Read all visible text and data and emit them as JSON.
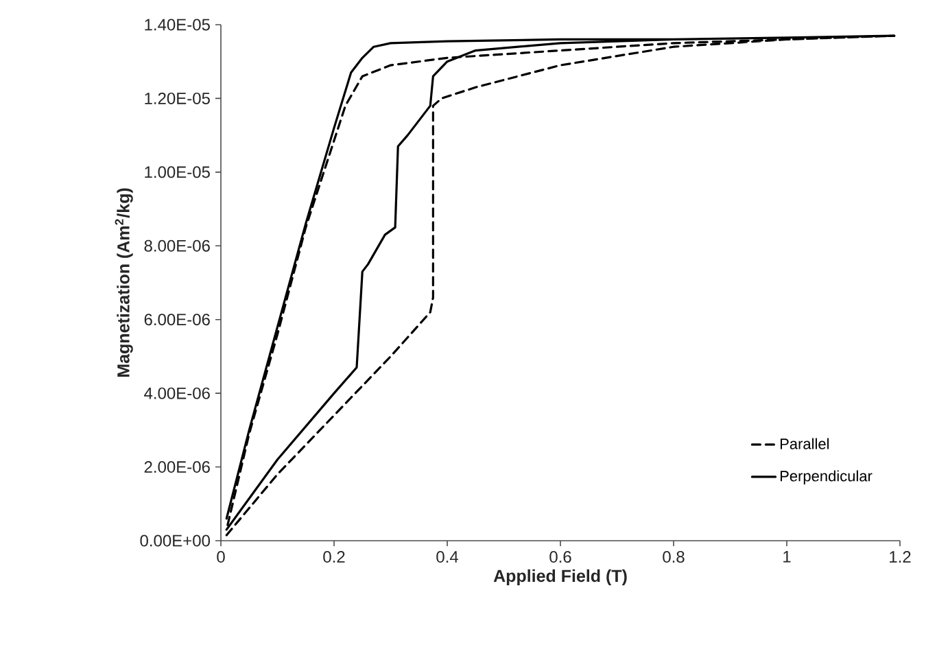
{
  "chart_data": {
    "type": "line",
    "xlabel": "Applied Field (T)",
    "ylabel": "Magnetization (Am$^{2}$/kg)",
    "xlim": [
      0,
      1.2
    ],
    "xticks": [
      0,
      0.2,
      0.4,
      0.6,
      0.8,
      1,
      1.2
    ],
    "ylim": [
      0,
      1.4e-05
    ],
    "yticks": [
      {
        "value": 0,
        "label": "0.00E+00"
      },
      {
        "value": 2e-06,
        "label": "2.00E-06"
      },
      {
        "value": 4e-06,
        "label": "4.00E-06"
      },
      {
        "value": 6e-06,
        "label": "6.00E-06"
      },
      {
        "value": 8e-06,
        "label": "8.00E-06"
      },
      {
        "value": 1e-05,
        "label": "1.00E-05"
      },
      {
        "value": 1.2e-05,
        "label": "1.20E-05"
      },
      {
        "value": 1.4e-05,
        "label": "1.40E-05"
      }
    ],
    "grid": false,
    "legend": "bottom right",
    "marker": "none",
    "series": [
      {
        "name": "Parallel",
        "color": "#000000",
        "line_style": "dashed",
        "x": [
          0.01,
          0.1,
          0.2,
          0.3,
          0.37,
          0.375,
          0.375,
          0.39,
          0.45,
          0.6,
          0.8,
          1.0,
          1.19,
          1.0,
          0.8,
          0.6,
          0.4,
          0.3,
          0.25,
          0.22,
          0.15,
          0.1,
          0.05,
          0.01
        ],
        "values": [
          1.5e-07,
          1.8e-06,
          3.4e-06,
          5e-06,
          6.2e-06,
          6.6e-06,
          1.18e-05,
          1.2e-05,
          1.23e-05,
          1.29e-05,
          1.34e-05,
          1.36e-05,
          1.37e-05,
          1.36e-05,
          1.35e-05,
          1.33e-05,
          1.31e-05,
          1.29e-05,
          1.26e-05,
          1.18e-05,
          8.5e-06,
          5.6e-06,
          2.9e-06,
          3e-07
        ]
      },
      {
        "name": "Perpendicular",
        "color": "#000000",
        "line_style": "solid",
        "x": [
          0.01,
          0.1,
          0.2,
          0.24,
          0.25,
          0.26,
          0.29,
          0.308,
          0.313,
          0.33,
          0.37,
          0.375,
          0.4,
          0.45,
          0.6,
          0.8,
          1.0,
          1.19,
          1.0,
          0.8,
          0.6,
          0.4,
          0.3,
          0.27,
          0.25,
          0.23,
          0.2,
          0.15,
          0.1,
          0.05,
          0.01
        ],
        "values": [
          3e-07,
          2.2e-06,
          4e-06,
          4.7e-06,
          7.3e-06,
          7.5e-06,
          8.3e-06,
          8.5e-06,
          1.07e-05,
          1.1e-05,
          1.18e-05,
          1.26e-05,
          1.3e-05,
          1.33e-05,
          1.35e-05,
          1.36e-05,
          1.365e-05,
          1.37e-05,
          1.365e-05,
          1.36e-05,
          1.36e-05,
          1.355e-05,
          1.35e-05,
          1.34e-05,
          1.31e-05,
          1.27e-05,
          1.12e-05,
          8.6e-06,
          5.8e-06,
          3e-06,
          6e-07
        ]
      }
    ]
  }
}
